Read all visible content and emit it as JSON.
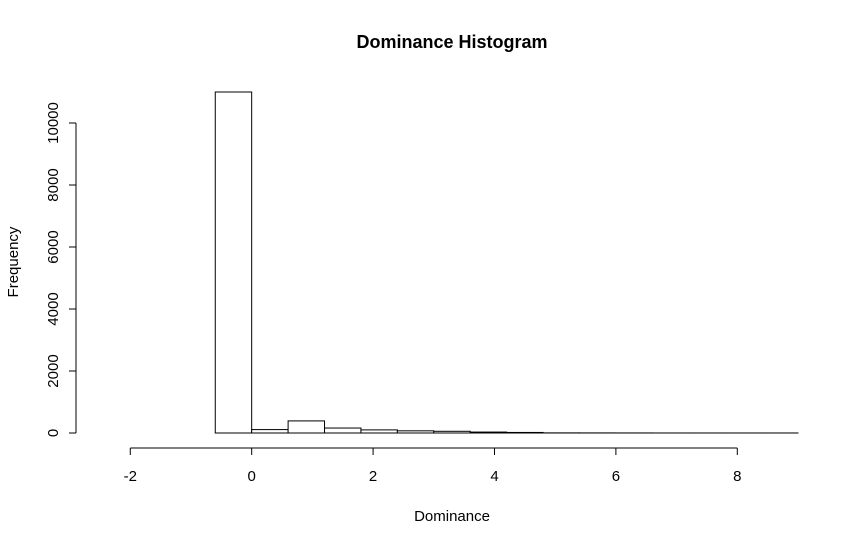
{
  "chart_data": {
    "type": "bar",
    "title": "Dominance Histogram",
    "xlabel": "Dominance",
    "ylabel": "Frequency",
    "bin_edges": [
      -2.4,
      -1.8,
      -1.2,
      -0.6,
      0.0,
      0.6,
      1.2,
      1.8,
      2.4,
      3.0,
      3.6,
      4.2,
      4.8,
      5.4,
      6.0,
      6.6,
      7.2,
      7.8,
      8.4,
      9.0
    ],
    "values": [
      0,
      0,
      0,
      11000,
      110,
      390,
      160,
      100,
      70,
      55,
      30,
      18,
      4,
      3,
      2,
      1,
      1,
      1,
      1
    ],
    "xlim": [
      -2.4,
      9.0
    ],
    "ylim": [
      0,
      11000
    ],
    "x_ticks": [
      -2,
      0,
      2,
      4,
      6,
      8
    ],
    "y_ticks": [
      0,
      2000,
      4000,
      6000,
      8000,
      10000
    ],
    "x_tick_labels": [
      "-2",
      "0",
      "2",
      "4",
      "6",
      "8"
    ],
    "y_tick_labels": [
      "0",
      "2000",
      "4000",
      "6000",
      "8000",
      "10000"
    ],
    "grid": false,
    "colors": {
      "bar_fill": "#ffffff",
      "bar_stroke": "#000000"
    }
  }
}
